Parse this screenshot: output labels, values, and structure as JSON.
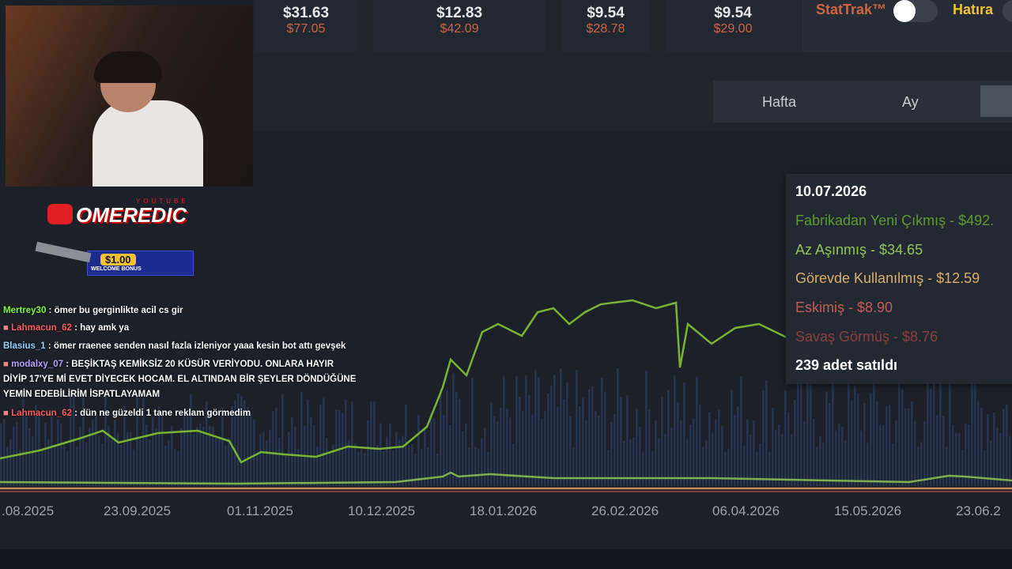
{
  "prices": [
    {
      "price": "$31.63",
      "old": "$77.05"
    },
    {
      "price": "$12.83",
      "old": "$42.09"
    },
    {
      "price": "$9.54",
      "old": "$28.78"
    },
    {
      "price": "$9.54",
      "old": "$29.00"
    }
  ],
  "toggles": [
    "StatTrak™",
    "Hatıra"
  ],
  "tabs": [
    "Hafta",
    "Ay"
  ],
  "chart": {
    "x_labels": [
      ".08.2025",
      "23.09.2025",
      "01.11.2025",
      "10.12.2025",
      "18.01.2026",
      "26.02.2026",
      "06.04.2026",
      "15.05.2026",
      "23.06.2"
    ]
  },
  "tooltip": {
    "date": "10.07.2026",
    "lines": [
      "Fabrikadan Yeni Çıkmış - $492.",
      "Az Aşınmış - $34.65",
      "Görevde Kullanılmış - $12.59",
      "Eskimiş - $8.90",
      "Savaş Görmüş - $8.76"
    ],
    "sold": "239 adet satıldı"
  },
  "overlay": {
    "channel_tag": "YOUTUBE",
    "channel": "OMEREDIC",
    "bonus": "$1.00",
    "bonus_text": "WELCOME BONUS"
  },
  "chat": [
    {
      "user": "Mertrey30",
      "text": ": ömer bu gerginlikte acil cs gir"
    },
    {
      "user": "Lahmacun_62",
      "text": ": hay amk ya"
    },
    {
      "user": "Blasius_1",
      "text": ": ömer rraenee senden nasıl fazla izleniyor yaaa kesin bot attı gevşek"
    },
    {
      "user": "modalxy_07",
      "text": ": BEŞİKTAŞ KEMİKSİZ 20 KÜSÜR VERİYODU. ONLARA HAYIR DİYİP 17'YE Mİ EVET DİYECEK HOCAM. EL ALTINDAN BİR ŞEYLER DÖNDÜĞÜNE YEMİN EDEBİLİRİM İSPATLAYAMAM"
    },
    {
      "user": "Lahmacun_62",
      "text": ": dün ne güzeldi 1 tane reklam görmedim"
    }
  ]
}
